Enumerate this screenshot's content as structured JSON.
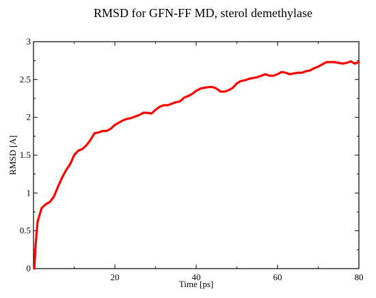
{
  "chart_data": {
    "type": "line",
    "title": "RMSD for GFN-FF MD, sterol demethylase",
    "xlabel": "Time [ps]",
    "ylabel": "RMSD [A]",
    "xlim": [
      0,
      80
    ],
    "ylim": [
      0,
      3
    ],
    "x_ticks": [
      20,
      40,
      60,
      80
    ],
    "x_tick_labels": [
      "20",
      "40",
      "60",
      "80"
    ],
    "y_ticks": [
      0,
      0.5,
      1,
      1.5,
      2,
      2.5,
      3
    ],
    "y_tick_labels": [
      "0",
      "0.5",
      "1",
      "1.5",
      "2",
      "2.5",
      "3"
    ],
    "grid": false,
    "legend": "none",
    "series": [
      {
        "color": "#ff0000",
        "points": [
          [
            0.2,
            0.0
          ],
          [
            0.5,
            0.3
          ],
          [
            1,
            0.62
          ],
          [
            2,
            0.8
          ],
          [
            3,
            0.85
          ],
          [
            4,
            0.88
          ],
          [
            5,
            0.95
          ],
          [
            6,
            1.08
          ],
          [
            7,
            1.2
          ],
          [
            8,
            1.3
          ],
          [
            9,
            1.38
          ],
          [
            10,
            1.5
          ],
          [
            11,
            1.56
          ],
          [
            12,
            1.58
          ],
          [
            13,
            1.63
          ],
          [
            14,
            1.7
          ],
          [
            15,
            1.79
          ],
          [
            16,
            1.8
          ],
          [
            17,
            1.82
          ],
          [
            18,
            1.82
          ],
          [
            19,
            1.85
          ],
          [
            20,
            1.9
          ],
          [
            21,
            1.93
          ],
          [
            22,
            1.96
          ],
          [
            23,
            1.98
          ],
          [
            24,
            1.99
          ],
          [
            25,
            2.01
          ],
          [
            26,
            2.03
          ],
          [
            27,
            2.06
          ],
          [
            28,
            2.06
          ],
          [
            29,
            2.05
          ],
          [
            30,
            2.1
          ],
          [
            31,
            2.14
          ],
          [
            32,
            2.16
          ],
          [
            33,
            2.16
          ],
          [
            34,
            2.18
          ],
          [
            35,
            2.2
          ],
          [
            36,
            2.21
          ],
          [
            37,
            2.26
          ],
          [
            38,
            2.28
          ],
          [
            39,
            2.31
          ],
          [
            40,
            2.35
          ],
          [
            41,
            2.38
          ],
          [
            42,
            2.39
          ],
          [
            43,
            2.4
          ],
          [
            44,
            2.4
          ],
          [
            45,
            2.38
          ],
          [
            46,
            2.34
          ],
          [
            47,
            2.34
          ],
          [
            48,
            2.36
          ],
          [
            49,
            2.39
          ],
          [
            50,
            2.45
          ],
          [
            51,
            2.48
          ],
          [
            52,
            2.49
          ],
          [
            53,
            2.51
          ],
          [
            54,
            2.52
          ],
          [
            55,
            2.53
          ],
          [
            56,
            2.55
          ],
          [
            57,
            2.57
          ],
          [
            58,
            2.55
          ],
          [
            59,
            2.55
          ],
          [
            60,
            2.57
          ],
          [
            61,
            2.6
          ],
          [
            62,
            2.59
          ],
          [
            63,
            2.57
          ],
          [
            64,
            2.58
          ],
          [
            65,
            2.59
          ],
          [
            66,
            2.59
          ],
          [
            67,
            2.61
          ],
          [
            68,
            2.62
          ],
          [
            69,
            2.65
          ],
          [
            70,
            2.67
          ],
          [
            71,
            2.7
          ],
          [
            72,
            2.73
          ],
          [
            73,
            2.73
          ],
          [
            74,
            2.73
          ],
          [
            75,
            2.72
          ],
          [
            76,
            2.71
          ],
          [
            77,
            2.72
          ],
          [
            78,
            2.74
          ],
          [
            79,
            2.71
          ],
          [
            80,
            2.73
          ]
        ]
      }
    ]
  }
}
